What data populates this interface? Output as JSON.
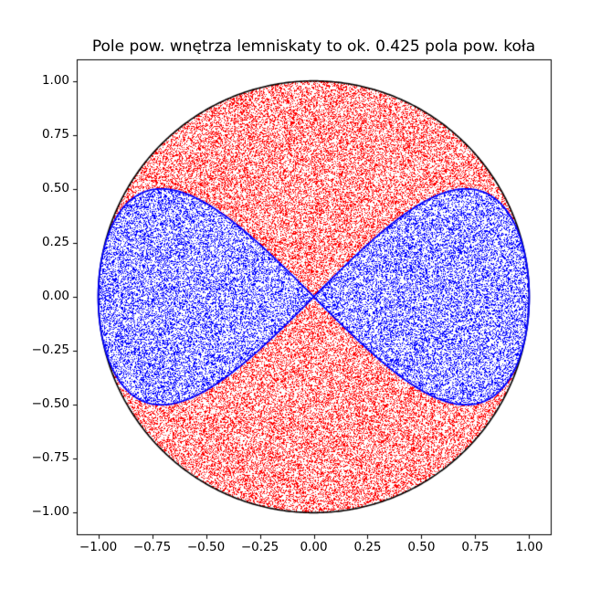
{
  "figure": {
    "background_color": "#ffffff"
  },
  "chart_data": {
    "type": "scatter",
    "title": "Pole pow. wnętrza lemniskaty to ok. 0.425 pola pow. koła",
    "area_ratio_shown_in_title": 0.425,
    "xlabel": "",
    "ylabel": "",
    "xlim": [
      -1.1,
      1.1
    ],
    "ylim": [
      -1.1,
      1.1
    ],
    "grid": false,
    "legend": null,
    "background_color": "#ffffff",
    "text_color": "#000000",
    "xtick_values": [
      -1.0,
      -0.75,
      -0.5,
      -0.25,
      0.0,
      0.25,
      0.5,
      0.75,
      1.0
    ],
    "xtick_labels": [
      "−1.00",
      "−0.75",
      "−0.50",
      "−0.25",
      "0.00",
      "0.25",
      "0.50",
      "0.75",
      "1.00"
    ],
    "ytick_values": [
      1.0,
      0.75,
      0.5,
      0.25,
      0.0,
      -0.25,
      -0.5,
      -0.75,
      -1.0
    ],
    "ytick_labels": [
      "1.00",
      "0.75",
      "0.50",
      "0.25",
      "0.00",
      "−0.25",
      "−0.50",
      "−0.75",
      "−1.00"
    ],
    "curves": [
      {
        "name": "circle-outline",
        "equation": "x^2 + y^2 = 1",
        "color": "#000000",
        "linewidth": 1.6
      },
      {
        "name": "lemniscate-of-gerono",
        "equation": "x^4 = x^2 - y^2",
        "parametric": "x = sin(t), y = sin(t)*cos(t), t in [0, 2*pi]",
        "color": "#0000ff",
        "linewidth": 1.8
      }
    ],
    "monte_carlo": {
      "sample_count": 100000,
      "seed": 7,
      "sample_domain": "uniform in [-1,1] x [-1,1]",
      "plotted_rule": "only samples with x^2 + y^2 <= 1 are drawn",
      "inside_lemniscate_rule": "y^2 <= x^2 * (1 - x^2)",
      "inside_lemniscate_color": "#0000ff",
      "outside_lemniscate_color": "#ff0000",
      "marker_size_px": 1
    }
  }
}
